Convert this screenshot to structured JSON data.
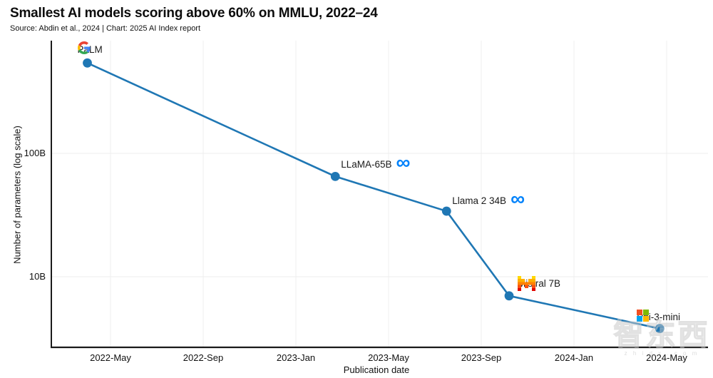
{
  "header": {
    "title": "Smallest AI models scoring above 60% on MMLU, 2022–24",
    "subtitle": "Source: Abdin et al., 2024 | Chart: 2025 AI Index report"
  },
  "chart_data": {
    "type": "line",
    "title": "Smallest AI models scoring above 60% on MMLU, 2022–24",
    "xlabel": "Publication date",
    "ylabel": "Number of parameters (log scale)",
    "y_scale": "log",
    "grid": "on",
    "legend": "none",
    "line_color": "#1F77B4",
    "x_ticks": [
      {
        "label": "2022-May",
        "month_index": 4
      },
      {
        "label": "2022-Sep",
        "month_index": 8
      },
      {
        "label": "2023-Jan",
        "month_index": 12
      },
      {
        "label": "2023-May",
        "month_index": 16
      },
      {
        "label": "2023-Sep",
        "month_index": 20
      },
      {
        "label": "2024-Jan",
        "month_index": 24
      },
      {
        "label": "2024-May",
        "month_index": 28
      }
    ],
    "y_ticks": [
      {
        "label": "100B",
        "value_b": 100
      },
      {
        "label": "10B",
        "value_b": 10
      }
    ],
    "points": [
      {
        "model": "PaLM",
        "org_logo": "google-icon",
        "date": "2022-Apr",
        "month_index": 3.0,
        "params_b": 540,
        "label_offset": [
          -14,
          -19
        ]
      },
      {
        "model": "LLaMA-65B",
        "org_logo": "meta-icon",
        "date": "2023-Feb",
        "month_index": 13.7,
        "params_b": 65,
        "label_offset": [
          8,
          -17
        ]
      },
      {
        "model": "Llama 2 34B",
        "org_logo": "meta-icon",
        "date": "2023-Jul",
        "month_index": 18.5,
        "params_b": 34,
        "label_offset": [
          8,
          -15
        ]
      },
      {
        "model": "Mistral 7B",
        "org_logo": "mistral-icon",
        "date": "2023-Oct",
        "month_index": 21.2,
        "params_b": 7,
        "label_offset": [
          12,
          -17
        ]
      },
      {
        "model": "Phi-3-mini",
        "org_logo": "microsoft-icon",
        "date": "2024-Apr",
        "month_index": 27.7,
        "params_b": 3.8,
        "label_offset": [
          -32,
          -16
        ]
      }
    ],
    "logo_colors": {
      "google": [
        "#EA4335",
        "#4285F4",
        "#FBBC05",
        "#34A853"
      ],
      "meta": "#0082FB",
      "mistral": [
        "#FFD800",
        "#FFAF00",
        "#FF8205",
        "#FA500F",
        "#E10500"
      ],
      "microsoft": [
        "#F25022",
        "#7FBA00",
        "#00A4EF",
        "#FFB900"
      ]
    }
  },
  "watermark": {
    "text": "智东西",
    "caption": "z h i d x . c o m"
  }
}
